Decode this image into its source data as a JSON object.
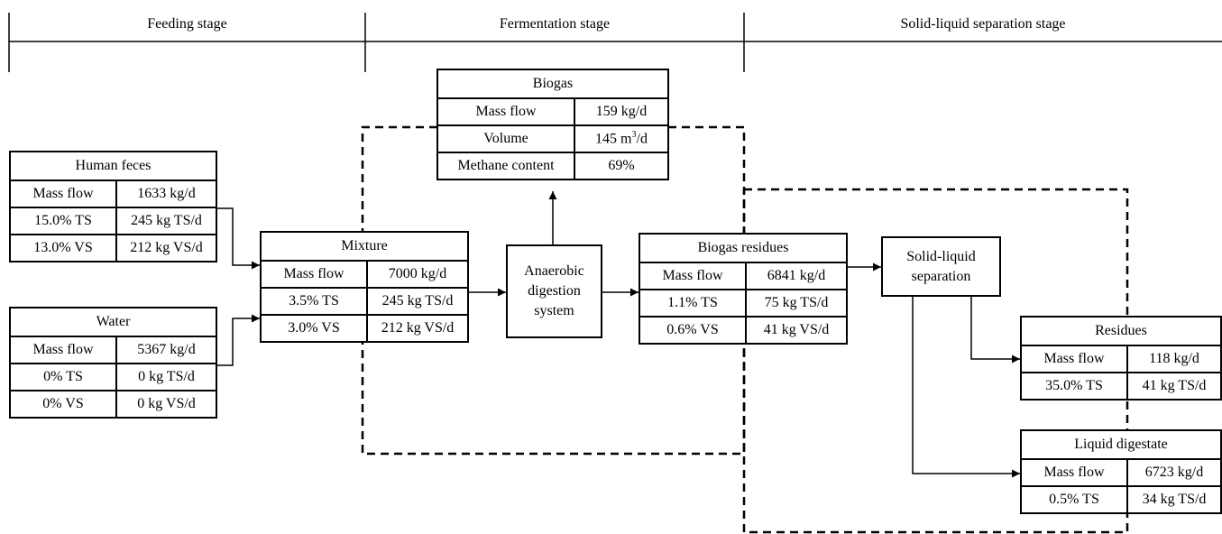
{
  "stages": [
    "Feeding stage",
    "Fermentation stage",
    "Solid-liquid separation stage"
  ],
  "human_feces": {
    "title": "Human feces",
    "rows": [
      [
        "Mass flow",
        "1633 kg/d"
      ],
      [
        "15.0% TS",
        "245 kg TS/d"
      ],
      [
        "13.0% VS",
        "212 kg VS/d"
      ]
    ]
  },
  "water": {
    "title": "Water",
    "rows": [
      [
        "Mass flow",
        "5367 kg/d"
      ],
      [
        "0% TS",
        "0 kg TS/d"
      ],
      [
        "0% VS",
        "0 kg VS/d"
      ]
    ]
  },
  "mixture": {
    "title": "Mixture",
    "rows": [
      [
        "Mass flow",
        "7000 kg/d"
      ],
      [
        "3.5% TS",
        "245 kg TS/d"
      ],
      [
        "3.0% VS",
        "212 kg VS/d"
      ]
    ]
  },
  "digester": {
    "label": "Anaerobic digestion system"
  },
  "biogas": {
    "title": "Biogas",
    "rows": [
      [
        "Mass flow",
        "159 kg/d"
      ],
      [
        "Volume",
        "145 m"
      ],
      [
        "Methane content",
        "69%"
      ]
    ],
    "volume_sup": "3",
    "volume_suffix": "/d"
  },
  "biogas_residues": {
    "title": "Biogas residues",
    "rows": [
      [
        "Mass flow",
        "6841 kg/d"
      ],
      [
        "1.1% TS",
        "75 kg TS/d"
      ],
      [
        "0.6% VS",
        "41 kg VS/d"
      ]
    ]
  },
  "separator": {
    "label": "Solid-liquid separation"
  },
  "residues": {
    "title": "Residues",
    "rows": [
      [
        "Mass flow",
        "118 kg/d"
      ],
      [
        "35.0% TS",
        "41 kg TS/d"
      ]
    ]
  },
  "liquid_digestate": {
    "title": "Liquid digestate",
    "rows": [
      [
        "Mass flow",
        "6723 kg/d"
      ],
      [
        "0.5% TS",
        "34 kg TS/d"
      ]
    ]
  }
}
